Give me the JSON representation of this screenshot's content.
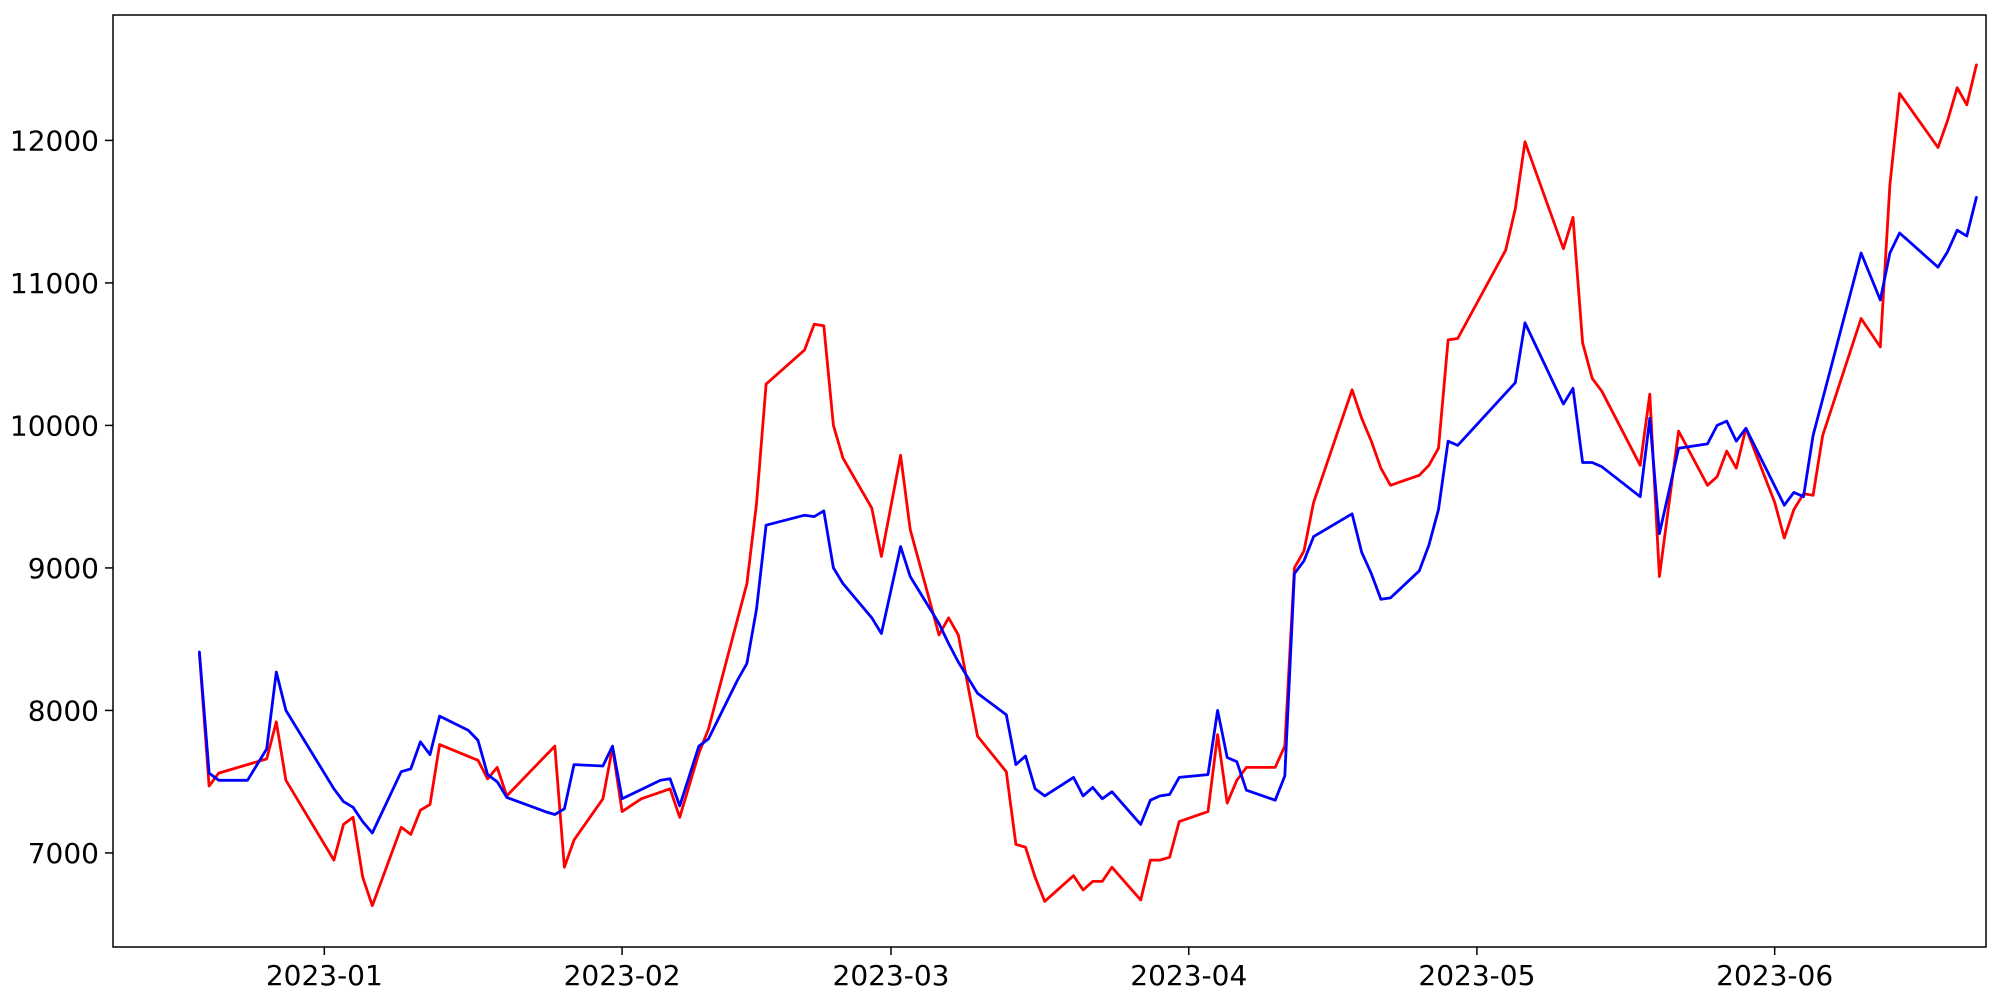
{
  "chart_data": {
    "type": "line",
    "title": "",
    "xlabel": "",
    "ylabel": "",
    "x_type": "date",
    "xlim": [
      "2022-12-10",
      "2023-06-23"
    ],
    "ylim": [
      6340,
      12880
    ],
    "grid": false,
    "legend": "none",
    "x_ticks": [
      "2023-01-01",
      "2023-02-01",
      "2023-03-01",
      "2023-04-01",
      "2023-05-01",
      "2023-06-01"
    ],
    "x_tick_labels": [
      "2023-01",
      "2023-02",
      "2023-03",
      "2023-04",
      "2023-05",
      "2023-06"
    ],
    "y_ticks": [
      7000,
      8000,
      9000,
      10000,
      11000,
      12000
    ],
    "y_tick_labels": [
      "7000",
      "8000",
      "9000",
      "10000",
      "11000",
      "12000"
    ],
    "series": [
      {
        "color": "#ff0000",
        "points": [
          [
            "2022-12-19",
            8400
          ],
          [
            "2022-12-20",
            7470
          ],
          [
            "2022-12-21",
            7560
          ],
          [
            "2022-12-26",
            7660
          ],
          [
            "2022-12-27",
            7920
          ],
          [
            "2022-12-28",
            7510
          ],
          [
            "2023-01-02",
            6950
          ],
          [
            "2023-01-03",
            7200
          ],
          [
            "2023-01-04",
            7250
          ],
          [
            "2023-01-05",
            6830
          ],
          [
            "2023-01-06",
            6630
          ],
          [
            "2023-01-09",
            7180
          ],
          [
            "2023-01-10",
            7130
          ],
          [
            "2023-01-11",
            7300
          ],
          [
            "2023-01-12",
            7340
          ],
          [
            "2023-01-13",
            7760
          ],
          [
            "2023-01-17",
            7650
          ],
          [
            "2023-01-18",
            7520
          ],
          [
            "2023-01-19",
            7600
          ],
          [
            "2023-01-20",
            7400
          ],
          [
            "2023-01-25",
            7750
          ],
          [
            "2023-01-26",
            6900
          ],
          [
            "2023-01-27",
            7090
          ],
          [
            "2023-01-30",
            7380
          ],
          [
            "2023-01-31",
            7740
          ],
          [
            "2023-02-01",
            7290
          ],
          [
            "2023-02-03",
            7380
          ],
          [
            "2023-02-06",
            7450
          ],
          [
            "2023-02-07",
            7250
          ],
          [
            "2023-02-09",
            7700
          ],
          [
            "2023-02-10",
            7870
          ],
          [
            "2023-02-14",
            8890
          ],
          [
            "2023-02-15",
            9450
          ],
          [
            "2023-02-16",
            10290
          ],
          [
            "2023-02-20",
            10530
          ],
          [
            "2023-02-21",
            10710
          ],
          [
            "2023-02-22",
            10700
          ],
          [
            "2023-02-23",
            10000
          ],
          [
            "2023-02-24",
            9770
          ],
          [
            "2023-02-27",
            9420
          ],
          [
            "2023-02-28",
            9080
          ],
          [
            "2023-03-02",
            9790
          ],
          [
            "2023-03-03",
            9270
          ],
          [
            "2023-03-06",
            8530
          ],
          [
            "2023-03-07",
            8650
          ],
          [
            "2023-03-08",
            8530
          ],
          [
            "2023-03-10",
            7820
          ],
          [
            "2023-03-13",
            7570
          ],
          [
            "2023-03-14",
            7060
          ],
          [
            "2023-03-15",
            7040
          ],
          [
            "2023-03-16",
            6830
          ],
          [
            "2023-03-17",
            6660
          ],
          [
            "2023-03-20",
            6840
          ],
          [
            "2023-03-21",
            6740
          ],
          [
            "2023-03-22",
            6800
          ],
          [
            "2023-03-23",
            6800
          ],
          [
            "2023-03-24",
            6900
          ],
          [
            "2023-03-27",
            6670
          ],
          [
            "2023-03-28",
            6950
          ],
          [
            "2023-03-29",
            6950
          ],
          [
            "2023-03-30",
            6970
          ],
          [
            "2023-03-31",
            7220
          ],
          [
            "2023-04-03",
            7290
          ],
          [
            "2023-04-04",
            7830
          ],
          [
            "2023-04-05",
            7350
          ],
          [
            "2023-04-06",
            7510
          ],
          [
            "2023-04-07",
            7600
          ],
          [
            "2023-04-10",
            7600
          ],
          [
            "2023-04-11",
            7750
          ],
          [
            "2023-04-12",
            9000
          ],
          [
            "2023-04-13",
            9120
          ],
          [
            "2023-04-14",
            9460
          ],
          [
            "2023-04-18",
            10250
          ],
          [
            "2023-04-19",
            10050
          ],
          [
            "2023-04-20",
            9890
          ],
          [
            "2023-04-21",
            9700
          ],
          [
            "2023-04-22",
            9580
          ],
          [
            "2023-04-25",
            9650
          ],
          [
            "2023-04-26",
            9720
          ],
          [
            "2023-04-27",
            9840
          ],
          [
            "2023-04-28",
            10600
          ],
          [
            "2023-04-29",
            10610
          ],
          [
            "2023-05-04",
            11230
          ],
          [
            "2023-05-05",
            11520
          ],
          [
            "2023-05-06",
            11990
          ],
          [
            "2023-05-10",
            11240
          ],
          [
            "2023-05-11",
            11460
          ],
          [
            "2023-05-12",
            10580
          ],
          [
            "2023-05-13",
            10330
          ],
          [
            "2023-05-14",
            10240
          ],
          [
            "2023-05-18",
            9720
          ],
          [
            "2023-05-19",
            10220
          ],
          [
            "2023-05-20",
            8940
          ],
          [
            "2023-05-22",
            9960
          ],
          [
            "2023-05-25",
            9580
          ],
          [
            "2023-05-26",
            9640
          ],
          [
            "2023-05-27",
            9820
          ],
          [
            "2023-05-28",
            9700
          ],
          [
            "2023-05-29",
            9980
          ],
          [
            "2023-06-01",
            9460
          ],
          [
            "2023-06-02",
            9210
          ],
          [
            "2023-06-03",
            9410
          ],
          [
            "2023-06-04",
            9520
          ],
          [
            "2023-06-05",
            9510
          ],
          [
            "2023-06-06",
            9930
          ],
          [
            "2023-06-10",
            10750
          ],
          [
            "2023-06-12",
            10550
          ],
          [
            "2023-06-13",
            11690
          ],
          [
            "2023-06-14",
            12330
          ],
          [
            "2023-06-18",
            11950
          ],
          [
            "2023-06-19",
            12140
          ],
          [
            "2023-06-20",
            12370
          ],
          [
            "2023-06-21",
            12250
          ],
          [
            "2023-06-22",
            12530
          ]
        ]
      },
      {
        "color": "#0000ff",
        "points": [
          [
            "2022-12-19",
            8410
          ],
          [
            "2022-12-20",
            7560
          ],
          [
            "2022-12-21",
            7510
          ],
          [
            "2022-12-24",
            7510
          ],
          [
            "2022-12-26",
            7730
          ],
          [
            "2022-12-27",
            8270
          ],
          [
            "2022-12-28",
            8000
          ],
          [
            "2023-01-02",
            7450
          ],
          [
            "2023-01-03",
            7360
          ],
          [
            "2023-01-04",
            7320
          ],
          [
            "2023-01-05",
            7220
          ],
          [
            "2023-01-06",
            7140
          ],
          [
            "2023-01-09",
            7570
          ],
          [
            "2023-01-10",
            7590
          ],
          [
            "2023-01-11",
            7780
          ],
          [
            "2023-01-12",
            7690
          ],
          [
            "2023-01-13",
            7960
          ],
          [
            "2023-01-16",
            7860
          ],
          [
            "2023-01-17",
            7790
          ],
          [
            "2023-01-18",
            7550
          ],
          [
            "2023-01-19",
            7500
          ],
          [
            "2023-01-20",
            7390
          ],
          [
            "2023-01-24",
            7290
          ],
          [
            "2023-01-25",
            7270
          ],
          [
            "2023-01-26",
            7310
          ],
          [
            "2023-01-27",
            7620
          ],
          [
            "2023-01-30",
            7610
          ],
          [
            "2023-01-31",
            7750
          ],
          [
            "2023-02-01",
            7380
          ],
          [
            "2023-02-05",
            7510
          ],
          [
            "2023-02-06",
            7520
          ],
          [
            "2023-02-07",
            7330
          ],
          [
            "2023-02-09",
            7750
          ],
          [
            "2023-02-10",
            7800
          ],
          [
            "2023-02-13",
            8210
          ],
          [
            "2023-02-14",
            8330
          ],
          [
            "2023-02-15",
            8710
          ],
          [
            "2023-02-16",
            9300
          ],
          [
            "2023-02-20",
            9370
          ],
          [
            "2023-02-21",
            9360
          ],
          [
            "2023-02-22",
            9400
          ],
          [
            "2023-02-23",
            9000
          ],
          [
            "2023-02-24",
            8890
          ],
          [
            "2023-02-27",
            8650
          ],
          [
            "2023-02-28",
            8540
          ],
          [
            "2023-03-02",
            9150
          ],
          [
            "2023-03-03",
            8940
          ],
          [
            "2023-03-06",
            8610
          ],
          [
            "2023-03-07",
            8470
          ],
          [
            "2023-03-08",
            8340
          ],
          [
            "2023-03-10",
            8120
          ],
          [
            "2023-03-13",
            7970
          ],
          [
            "2023-03-14",
            7620
          ],
          [
            "2023-03-15",
            7680
          ],
          [
            "2023-03-16",
            7450
          ],
          [
            "2023-03-17",
            7400
          ],
          [
            "2023-03-20",
            7530
          ],
          [
            "2023-03-21",
            7400
          ],
          [
            "2023-03-22",
            7460
          ],
          [
            "2023-03-23",
            7380
          ],
          [
            "2023-03-24",
            7430
          ],
          [
            "2023-03-27",
            7200
          ],
          [
            "2023-03-28",
            7370
          ],
          [
            "2023-03-29",
            7400
          ],
          [
            "2023-03-30",
            7410
          ],
          [
            "2023-03-31",
            7530
          ],
          [
            "2023-04-03",
            7550
          ],
          [
            "2023-04-04",
            8000
          ],
          [
            "2023-04-05",
            7670
          ],
          [
            "2023-04-06",
            7640
          ],
          [
            "2023-04-07",
            7440
          ],
          [
            "2023-04-10",
            7370
          ],
          [
            "2023-04-11",
            7540
          ],
          [
            "2023-04-12",
            8960
          ],
          [
            "2023-04-13",
            9050
          ],
          [
            "2023-04-14",
            9220
          ],
          [
            "2023-04-18",
            9380
          ],
          [
            "2023-04-19",
            9110
          ],
          [
            "2023-04-20",
            8960
          ],
          [
            "2023-04-21",
            8780
          ],
          [
            "2023-04-22",
            8790
          ],
          [
            "2023-04-25",
            8980
          ],
          [
            "2023-04-26",
            9160
          ],
          [
            "2023-04-27",
            9410
          ],
          [
            "2023-04-28",
            9890
          ],
          [
            "2023-04-29",
            9860
          ],
          [
            "2023-05-05",
            10300
          ],
          [
            "2023-05-06",
            10720
          ],
          [
            "2023-05-10",
            10150
          ],
          [
            "2023-05-11",
            10260
          ],
          [
            "2023-05-12",
            9740
          ],
          [
            "2023-05-13",
            9740
          ],
          [
            "2023-05-14",
            9710
          ],
          [
            "2023-05-18",
            9500
          ],
          [
            "2023-05-19",
            10050
          ],
          [
            "2023-05-20",
            9240
          ],
          [
            "2023-05-21",
            9540
          ],
          [
            "2023-05-22",
            9840
          ],
          [
            "2023-05-25",
            9870
          ],
          [
            "2023-05-26",
            10000
          ],
          [
            "2023-05-27",
            10030
          ],
          [
            "2023-05-28",
            9890
          ],
          [
            "2023-05-29",
            9980
          ],
          [
            "2023-06-02",
            9440
          ],
          [
            "2023-06-03",
            9530
          ],
          [
            "2023-06-04",
            9500
          ],
          [
            "2023-06-05",
            9930
          ],
          [
            "2023-06-10",
            11210
          ],
          [
            "2023-06-12",
            10880
          ],
          [
            "2023-06-13",
            11210
          ],
          [
            "2023-06-14",
            11350
          ],
          [
            "2023-06-18",
            11110
          ],
          [
            "2023-06-19",
            11220
          ],
          [
            "2023-06-20",
            11370
          ],
          [
            "2023-06-21",
            11330
          ],
          [
            "2023-06-22",
            11600
          ]
        ]
      }
    ]
  }
}
